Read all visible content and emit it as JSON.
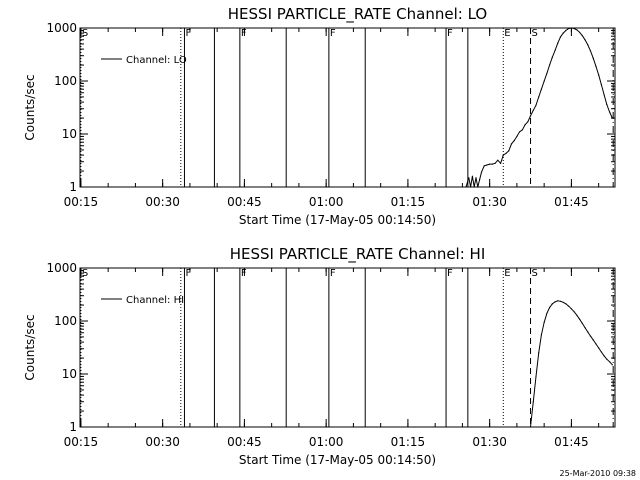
{
  "chart_data": [
    {
      "type": "line",
      "title": "HESSI PARTICLE_RATE Channel: LO",
      "xlabel": "Start Time (17-May-05 00:14:50)",
      "ylabel": "Counts/sec",
      "yscale": "log",
      "ylim": [
        1,
        1000
      ],
      "xlim": [
        "00:14:50",
        "01:53:00"
      ],
      "xticks": [
        "00:15",
        "00:30",
        "00:45",
        "01:00",
        "01:15",
        "01:30",
        "01:45"
      ],
      "yticks": [
        "1",
        "10",
        "100",
        "1000"
      ],
      "legend": {
        "label": "Channel: LO",
        "placement": "top-left"
      },
      "grid": false,
      "series": [
        {
          "name": "Channel: LO",
          "x": [
            "01:25:40",
            "01:26:10",
            "01:26:30",
            "01:26:50",
            "01:27:10",
            "01:27:30",
            "01:27:50",
            "01:28:10",
            "01:28:30",
            "01:29:00",
            "01:29:30",
            "01:30:00",
            "01:30:30",
            "01:31:00",
            "01:31:30",
            "01:32:00",
            "01:32:30",
            "01:33:00",
            "01:33:30",
            "01:34:00",
            "01:34:30",
            "01:35:00",
            "01:35:30",
            "01:36:00",
            "01:36:30",
            "01:37:00",
            "01:37:30",
            "01:38:00",
            "01:38:30",
            "01:39:00",
            "01:39:30",
            "01:40:00",
            "01:40:30",
            "01:41:00",
            "01:41:30",
            "01:42:00",
            "01:42:30",
            "01:43:00",
            "01:43:30",
            "01:44:00",
            "01:44:30",
            "01:45:00",
            "01:45:30",
            "01:46:00",
            "01:46:30",
            "01:47:00",
            "01:47:30",
            "01:48:00",
            "01:48:30",
            "01:49:00",
            "01:49:30",
            "01:50:00",
            "01:50:30",
            "01:51:00",
            "01:51:30",
            "01:52:00",
            "01:52:30"
          ],
          "y": [
            1,
            1.5,
            1,
            1.6,
            1,
            1.5,
            1,
            1.4,
            1.9,
            2.5,
            2.6,
            2.7,
            2.7,
            2.8,
            3.2,
            2.8,
            4,
            4.3,
            4.8,
            6.5,
            7.5,
            9,
            11,
            12,
            15,
            17,
            22,
            28,
            35,
            50,
            70,
            100,
            140,
            200,
            280,
            380,
            520,
            680,
            800,
            900,
            980,
            1000,
            980,
            920,
            830,
            720,
            600,
            480,
            370,
            270,
            190,
            130,
            85,
            55,
            36,
            26,
            20
          ]
        }
      ],
      "markers": [
        {
          "x": "00:15:00",
          "label": "S",
          "style": "dotted"
        },
        {
          "x": "00:33:20",
          "label": "",
          "style": "dotted"
        },
        {
          "x": "00:34:00",
          "label": "F",
          "style": "solid"
        },
        {
          "x": "00:39:30",
          "label": "",
          "style": "solid"
        },
        {
          "x": "00:44:10",
          "label": "F",
          "style": "solid"
        },
        {
          "x": "00:52:40",
          "label": "",
          "style": "solid"
        },
        {
          "x": "01:00:30",
          "label": "F",
          "style": "solid"
        },
        {
          "x": "01:07:10",
          "label": "",
          "style": "solid"
        },
        {
          "x": "01:22:00",
          "label": "F",
          "style": "solid"
        },
        {
          "x": "01:26:00",
          "label": "",
          "style": "solid"
        },
        {
          "x": "01:32:30",
          "label": "E",
          "style": "dotted"
        },
        {
          "x": "01:37:30",
          "label": "S",
          "style": "dashed"
        },
        {
          "x": "01:52:40",
          "label": "",
          "style": "dashdot"
        }
      ]
    },
    {
      "type": "line",
      "title": "HESSI PARTICLE_RATE Channel: HI",
      "xlabel": "Start Time (17-May-05 00:14:50)",
      "ylabel": "Counts/sec",
      "yscale": "log",
      "ylim": [
        1,
        1000
      ],
      "xlim": [
        "00:14:50",
        "01:53:00"
      ],
      "xticks": [
        "00:15",
        "00:30",
        "00:45",
        "01:00",
        "01:15",
        "01:30",
        "01:45"
      ],
      "yticks": [
        "1",
        "10",
        "100",
        "1000"
      ],
      "legend": {
        "label": "Channel: HI",
        "placement": "top-left"
      },
      "grid": false,
      "series": [
        {
          "name": "Channel: HI",
          "x": [
            "01:37:30",
            "01:38:00",
            "01:38:30",
            "01:39:00",
            "01:39:30",
            "01:40:00",
            "01:40:30",
            "01:41:00",
            "01:41:30",
            "01:42:00",
            "01:42:30",
            "01:43:00",
            "01:43:30",
            "01:44:00",
            "01:44:30",
            "01:45:00",
            "01:45:30",
            "01:46:00",
            "01:46:30",
            "01:47:00",
            "01:47:30",
            "01:48:00",
            "01:48:30",
            "01:49:00",
            "01:49:30",
            "01:50:00",
            "01:50:30",
            "01:51:00",
            "01:51:30",
            "01:52:00",
            "01:52:30"
          ],
          "y": [
            1,
            3,
            9,
            25,
            55,
            95,
            140,
            180,
            210,
            230,
            240,
            235,
            225,
            210,
            190,
            170,
            150,
            128,
            108,
            90,
            75,
            62,
            52,
            44,
            37,
            31,
            26,
            22,
            19,
            17,
            15
          ]
        }
      ],
      "markers": [
        {
          "x": "00:15:00",
          "label": "S",
          "style": "dotted"
        },
        {
          "x": "00:33:20",
          "label": "",
          "style": "dotted"
        },
        {
          "x": "00:34:00",
          "label": "F",
          "style": "solid"
        },
        {
          "x": "00:39:30",
          "label": "",
          "style": "solid"
        },
        {
          "x": "00:44:10",
          "label": "F",
          "style": "solid"
        },
        {
          "x": "00:52:40",
          "label": "",
          "style": "solid"
        },
        {
          "x": "01:00:30",
          "label": "F",
          "style": "solid"
        },
        {
          "x": "01:07:10",
          "label": "",
          "style": "solid"
        },
        {
          "x": "01:22:00",
          "label": "F",
          "style": "solid"
        },
        {
          "x": "01:26:00",
          "label": "",
          "style": "solid"
        },
        {
          "x": "01:32:30",
          "label": "E",
          "style": "dotted"
        },
        {
          "x": "01:37:30",
          "label": "S",
          "style": "dashed"
        },
        {
          "x": "01:52:40",
          "label": "",
          "style": "dashdot"
        }
      ]
    }
  ],
  "footer": {
    "timestamp": "25-Mar-2010 09:38"
  }
}
